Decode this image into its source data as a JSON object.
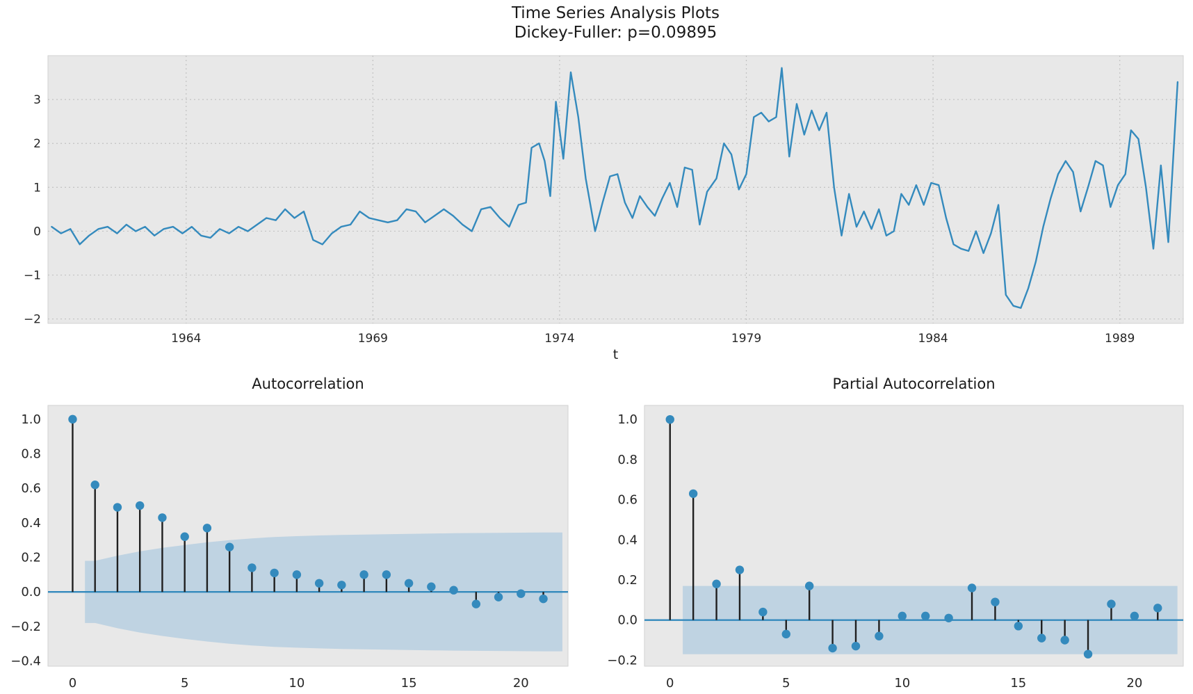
{
  "figure": {
    "background": "#ffffff",
    "axes_background": "#e8e8e8",
    "axes_edge": "#d2d2d2",
    "grid_color": "#c2c2c2",
    "text_color": "#262626",
    "line_color": "#348ABD",
    "marker_color": "#348ABD",
    "stem_color": "#1f1f1f",
    "band_color": "#9dc1dc"
  },
  "chart_data": [
    {
      "type": "line",
      "title": "Time Series Analysis Plots",
      "subtitle": "Dickey-Fuller: p=0.09895",
      "dickey_fuller_p": 0.09895,
      "xlabel": "t",
      "ylabel": "",
      "grid": true,
      "legend": "none",
      "xlim": [
        1960.3,
        1990.7
      ],
      "ylim": [
        -2.1,
        4.0
      ],
      "xticks": [
        1964,
        1969,
        1974,
        1979,
        1984,
        1989
      ],
      "xtick_labels": [
        "1964",
        "1969",
        "1974",
        "1979",
        "1984",
        "1989"
      ],
      "yticks": [
        -2,
        -1,
        0,
        1,
        2,
        3
      ],
      "ytick_labels": [
        "−2",
        "−1",
        "0",
        "1",
        "2",
        "3"
      ],
      "x": [
        1960.4,
        1960.65,
        1960.9,
        1961.15,
        1961.4,
        1961.65,
        1961.9,
        1962.15,
        1962.4,
        1962.65,
        1962.9,
        1963.15,
        1963.4,
        1963.65,
        1963.9,
        1964.15,
        1964.4,
        1964.65,
        1964.9,
        1965.15,
        1965.4,
        1965.65,
        1965.9,
        1966.15,
        1966.4,
        1966.65,
        1966.9,
        1967.15,
        1967.4,
        1967.65,
        1967.9,
        1968.15,
        1968.4,
        1968.65,
        1968.9,
        1969.15,
        1969.4,
        1969.65,
        1969.9,
        1970.15,
        1970.4,
        1970.65,
        1970.9,
        1971.15,
        1971.4,
        1971.65,
        1971.9,
        1972.15,
        1972.4,
        1972.65,
        1972.9,
        1973.1,
        1973.25,
        1973.45,
        1973.6,
        1973.75,
        1973.9,
        1974.1,
        1974.3,
        1974.5,
        1974.7,
        1974.95,
        1975.15,
        1975.35,
        1975.55,
        1975.75,
        1975.95,
        1976.15,
        1976.35,
        1976.55,
        1976.75,
        1976.95,
        1977.15,
        1977.35,
        1977.55,
        1977.75,
        1977.95,
        1978.2,
        1978.4,
        1978.6,
        1978.8,
        1979.0,
        1979.2,
        1979.4,
        1979.6,
        1979.8,
        1979.95,
        1980.15,
        1980.35,
        1980.55,
        1980.75,
        1980.95,
        1981.15,
        1981.35,
        1981.55,
        1981.75,
        1981.95,
        1982.15,
        1982.35,
        1982.55,
        1982.75,
        1982.95,
        1983.15,
        1983.35,
        1983.55,
        1983.75,
        1983.95,
        1984.15,
        1984.35,
        1984.55,
        1984.75,
        1984.95,
        1985.15,
        1985.35,
        1985.55,
        1985.75,
        1985.95,
        1986.15,
        1986.35,
        1986.55,
        1986.75,
        1986.95,
        1987.15,
        1987.35,
        1987.55,
        1987.75,
        1987.95,
        1988.15,
        1988.35,
        1988.55,
        1988.75,
        1988.95,
        1989.15,
        1989.3,
        1989.5,
        1989.7,
        1989.9,
        1990.1,
        1990.3,
        1990.55
      ],
      "y": [
        0.1,
        -0.05,
        0.05,
        -0.3,
        -0.1,
        0.05,
        0.1,
        -0.05,
        0.15,
        0.0,
        0.1,
        -0.1,
        0.05,
        0.1,
        -0.05,
        0.1,
        -0.1,
        -0.15,
        0.05,
        -0.05,
        0.1,
        0.0,
        0.15,
        0.3,
        0.25,
        0.5,
        0.3,
        0.45,
        -0.2,
        -0.3,
        -0.05,
        0.1,
        0.15,
        0.45,
        0.3,
        0.25,
        0.2,
        0.25,
        0.5,
        0.45,
        0.2,
        0.35,
        0.5,
        0.35,
        0.15,
        0.0,
        0.5,
        0.55,
        0.3,
        0.1,
        0.6,
        0.65,
        1.9,
        2.0,
        1.6,
        0.8,
        2.95,
        1.65,
        3.62,
        2.6,
        1.2,
        0.0,
        0.65,
        1.25,
        1.3,
        0.65,
        0.3,
        0.8,
        0.55,
        0.35,
        0.75,
        1.1,
        0.55,
        1.45,
        1.4,
        0.15,
        0.9,
        1.2,
        2.0,
        1.75,
        0.95,
        1.3,
        2.6,
        2.7,
        2.5,
        2.6,
        3.72,
        1.7,
        2.9,
        2.2,
        2.75,
        2.3,
        2.7,
        1.0,
        -0.1,
        0.85,
        0.1,
        0.45,
        0.05,
        0.5,
        -0.1,
        0.0,
        0.85,
        0.6,
        1.05,
        0.6,
        1.1,
        1.05,
        0.3,
        -0.3,
        -0.4,
        -0.45,
        0.0,
        -0.5,
        -0.05,
        0.6,
        -1.45,
        -1.7,
        -1.75,
        -1.3,
        -0.7,
        0.1,
        0.75,
        1.3,
        1.6,
        1.35,
        0.45,
        1.0,
        1.6,
        1.5,
        0.55,
        1.05,
        1.3,
        2.3,
        2.1,
        1.0,
        -0.4,
        1.5,
        -0.25,
        3.4
      ]
    },
    {
      "type": "stem",
      "title": "Autocorrelation",
      "grid": false,
      "xlim": [
        -1.1,
        22.1
      ],
      "ylim": [
        -0.43,
        1.08
      ],
      "xticks": [
        0,
        5,
        10,
        15,
        20
      ],
      "xtick_labels": [
        "0",
        "5",
        "10",
        "15",
        "20"
      ],
      "yticks": [
        -0.4,
        -0.2,
        0.0,
        0.2,
        0.4,
        0.6,
        0.8,
        1.0
      ],
      "ytick_labels": [
        "−0.4",
        "−0.2",
        "0.0",
        "0.2",
        "0.4",
        "0.6",
        "0.8",
        "1.0"
      ],
      "lags": [
        0,
        1,
        2,
        3,
        4,
        5,
        6,
        7,
        8,
        9,
        10,
        11,
        12,
        13,
        14,
        15,
        16,
        17,
        18,
        19,
        20,
        21
      ],
      "values": [
        1.0,
        0.62,
        0.49,
        0.5,
        0.43,
        0.32,
        0.37,
        0.26,
        0.14,
        0.11,
        0.1,
        0.05,
        0.04,
        0.1,
        0.1,
        0.05,
        0.03,
        0.01,
        -0.07,
        -0.03,
        -0.01,
        -0.04
      ],
      "band": {
        "start": 0.55,
        "end": 21.85,
        "halfwidths": [
          0.18,
          0.21,
          0.235,
          0.255,
          0.272,
          0.287,
          0.3,
          0.31,
          0.318,
          0.323,
          0.327,
          0.33,
          0.332,
          0.334,
          0.336,
          0.338,
          0.34,
          0.341,
          0.342,
          0.343,
          0.344
        ]
      }
    },
    {
      "type": "stem",
      "title": "Partial Autocorrelation",
      "grid": false,
      "xlim": [
        -1.1,
        22.1
      ],
      "ylim": [
        -0.23,
        1.07
      ],
      "xticks": [
        0,
        5,
        10,
        15,
        20
      ],
      "xtick_labels": [
        "0",
        "5",
        "10",
        "15",
        "20"
      ],
      "yticks": [
        -0.2,
        0.0,
        0.2,
        0.4,
        0.6,
        0.8,
        1.0
      ],
      "ytick_labels": [
        "−0.2",
        "0.0",
        "0.2",
        "0.4",
        "0.6",
        "0.8",
        "1.0"
      ],
      "lags": [
        0,
        1,
        2,
        3,
        4,
        5,
        6,
        7,
        8,
        9,
        10,
        11,
        12,
        13,
        14,
        15,
        16,
        17,
        18,
        19,
        20,
        21
      ],
      "values": [
        1.0,
        0.63,
        0.18,
        0.25,
        0.04,
        -0.07,
        0.17,
        -0.14,
        -0.13,
        -0.08,
        0.02,
        0.02,
        0.01,
        0.16,
        0.09,
        -0.03,
        -0.09,
        -0.1,
        -0.17,
        0.08,
        0.02,
        0.06
      ],
      "band": {
        "start": 0.55,
        "end": 21.85,
        "halfwidths": [
          0.17,
          0.17,
          0.17,
          0.17,
          0.17,
          0.17,
          0.17,
          0.17,
          0.17,
          0.17,
          0.17,
          0.17,
          0.17,
          0.17,
          0.17,
          0.17,
          0.17,
          0.17,
          0.17,
          0.17,
          0.17
        ]
      }
    }
  ]
}
